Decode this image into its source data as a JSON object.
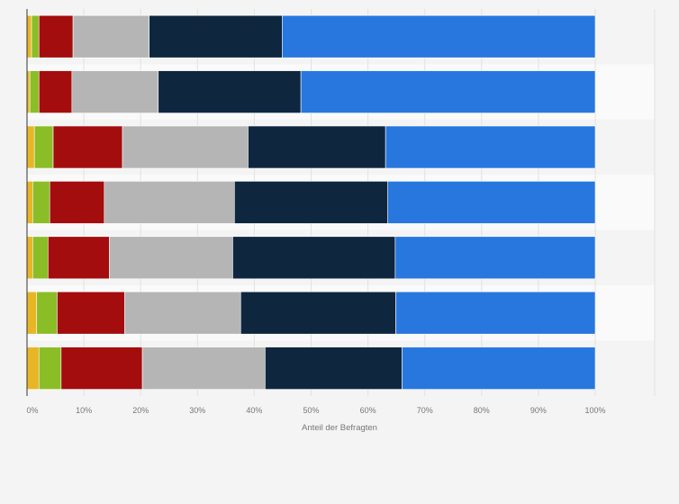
{
  "chart_data": {
    "type": "bar",
    "orientation": "horizontal",
    "stacked": true,
    "categories": [
      "",
      "",
      "",
      "",
      "",
      "",
      ""
    ],
    "series": [
      {
        "color": "#e8b526",
        "values": [
          0.8,
          0.5,
          1.3,
          1.0,
          1.0,
          1.7,
          2.1
        ]
      },
      {
        "color": "#8bbd26",
        "values": [
          1.3,
          1.6,
          3.3,
          3.0,
          2.7,
          3.6,
          3.9
        ]
      },
      {
        "color": "#a30d0d",
        "values": [
          6.0,
          5.8,
          12.2,
          9.6,
          10.8,
          11.9,
          14.3
        ]
      },
      {
        "color": "#b5b5b5",
        "values": [
          13.4,
          15.2,
          22.1,
          22.9,
          21.7,
          20.4,
          21.6
        ]
      },
      {
        "color": "#0f263f",
        "values": [
          23.4,
          25.1,
          24.2,
          27.0,
          28.6,
          27.3,
          24.1
        ]
      },
      {
        "color": "#2877df",
        "values": [
          55.1,
          51.8,
          36.9,
          36.5,
          35.2,
          35.1,
          34.0
        ]
      }
    ],
    "xlim": [
      0,
      100
    ],
    "x_ticks": [
      "0%",
      "10%",
      "20%",
      "30%",
      "40%",
      "50%",
      "60%",
      "70%",
      "80%",
      "90%",
      "100%"
    ],
    "xlabel": "Anteil der Befragten",
    "grid": true,
    "legend": "none"
  }
}
